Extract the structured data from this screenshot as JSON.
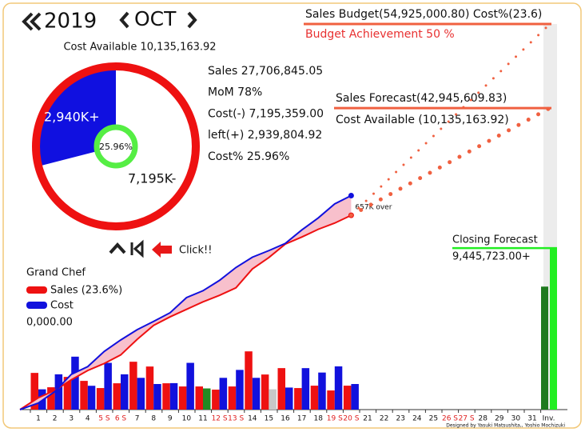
{
  "header": {
    "year": "2019",
    "month": "OCT"
  },
  "pie": {
    "title": "Cost Available 10,135,163.92",
    "values": [
      2939804.92,
      7195359.0
    ],
    "labels": [
      "2,940K+",
      "7,195K-"
    ],
    "colors": [
      "#1010e0",
      "#ffffff"
    ],
    "center_label": "25.96%"
  },
  "stats": [
    "Sales 27,706,845.05",
    "MoM 78%",
    "Cost(-) 7,195,359.00",
    "left(+) 2,939,804.92",
    "Cost% 25.96%"
  ],
  "budget": {
    "label": "Sales Budget(54,925,000.80) Cost%(23.6)",
    "value": 54925000.8,
    "achievement": "Budget Achievement 50 %"
  },
  "forecast": {
    "label": "Sales Forecast(42,945,609.83)",
    "value": 42945609.83,
    "cost_available": "Cost Available (10,135,163.92)"
  },
  "over_label": "657K over",
  "click_label": "Click!!",
  "legend": {
    "title": "Grand Chef",
    "total": "0,000.00"
  },
  "cost_ratio": 23.6,
  "series": [
    {
      "name": "Sales (23.6%)",
      "color": "#ee1111",
      "values": [
        1697400,
        1033200,
        1512900,
        1328400,
        996300,
        1217700,
        2214000,
        1992600,
        1217700,
        1070100,
        1070100,
        922500,
        1070100,
        2693700,
        1623600,
        1918800,
        996300,
        1107000,
        885600,
        1107000
      ]
    },
    {
      "name": "Cost",
      "color": "#1111dd",
      "values": [
        221490,
        385200,
        577800,
        260010,
        510390,
        385200,
        346680,
        279270,
        288900,
        510390,
        231120,
        346680,
        433350,
        346680,
        221490,
        240750,
        452610,
        404460,
        471870,
        279270
      ],
      "bar_colors": [
        "#1111dd",
        "#1111dd",
        "#1111dd",
        "#1111dd",
        "#1111dd",
        "#1111dd",
        "#1111dd",
        "#1111dd",
        "#1111dd",
        "#1111dd",
        "#228b22",
        "#1111dd",
        "#1111dd",
        "#1111dd",
        "#c8c8c8",
        "#1111dd",
        "#1111dd",
        "#1111dd",
        "#1111dd",
        "#1111dd"
      ]
    }
  ],
  "days": [
    "1",
    "2",
    "3",
    "4",
    "5 S",
    "6 S",
    "7",
    "8",
    "9",
    "10",
    "11",
    "12 S",
    "13 S",
    "14",
    "15",
    "16",
    "17",
    "18",
    "19 S",
    "20 S",
    "21",
    "22",
    "23",
    "24",
    "25",
    "26 S",
    "27 S",
    "28",
    "29",
    "30",
    "31",
    "Inv."
  ],
  "closing": {
    "label": "Closing Forecast",
    "value_label": "9,445,723.00+",
    "value": 9445723.0
  },
  "credit": "Designed by Yasuki Matsushita,, Yoshio Mochizuki"
}
